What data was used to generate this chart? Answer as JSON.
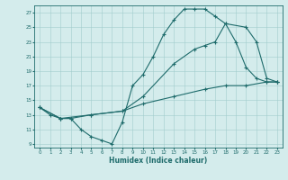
{
  "xlabel": "Humidex (Indice chaleur)",
  "bg_color": "#d4ecec",
  "line_color": "#1e6b6b",
  "xlim": [
    -0.5,
    23.5
  ],
  "ylim": [
    8.5,
    28.0
  ],
  "xticks": [
    0,
    1,
    2,
    3,
    4,
    5,
    6,
    7,
    8,
    9,
    10,
    11,
    12,
    13,
    14,
    15,
    16,
    17,
    18,
    19,
    20,
    21,
    22,
    23
  ],
  "yticks": [
    9,
    11,
    13,
    15,
    17,
    19,
    21,
    23,
    25,
    27
  ],
  "line1_x": [
    0,
    1,
    2,
    3,
    4,
    5,
    6,
    7,
    8,
    9,
    10,
    11,
    12,
    13,
    14,
    15,
    16,
    17,
    18,
    19,
    20,
    21,
    22,
    23
  ],
  "line1_y": [
    14,
    13,
    12.5,
    12.5,
    11,
    10,
    9.5,
    9,
    12,
    17,
    18.5,
    21,
    24,
    26,
    27.5,
    27.5,
    27.5,
    26.5,
    25.5,
    23,
    19.5,
    18,
    17.5,
    17.5
  ],
  "line2_x": [
    0,
    2,
    3,
    5,
    8,
    10,
    13,
    15,
    16,
    17,
    18,
    20,
    21,
    22,
    23
  ],
  "line2_y": [
    14,
    12.5,
    12.5,
    13,
    13.5,
    15.5,
    20,
    22,
    22.5,
    23,
    25.5,
    25,
    23,
    18,
    17.5
  ],
  "line3_x": [
    0,
    2,
    5,
    8,
    10,
    13,
    16,
    18,
    20,
    22,
    23
  ],
  "line3_y": [
    14,
    12.5,
    13,
    13.5,
    14.5,
    15.5,
    16.5,
    17,
    17,
    17.5,
    17.5
  ]
}
